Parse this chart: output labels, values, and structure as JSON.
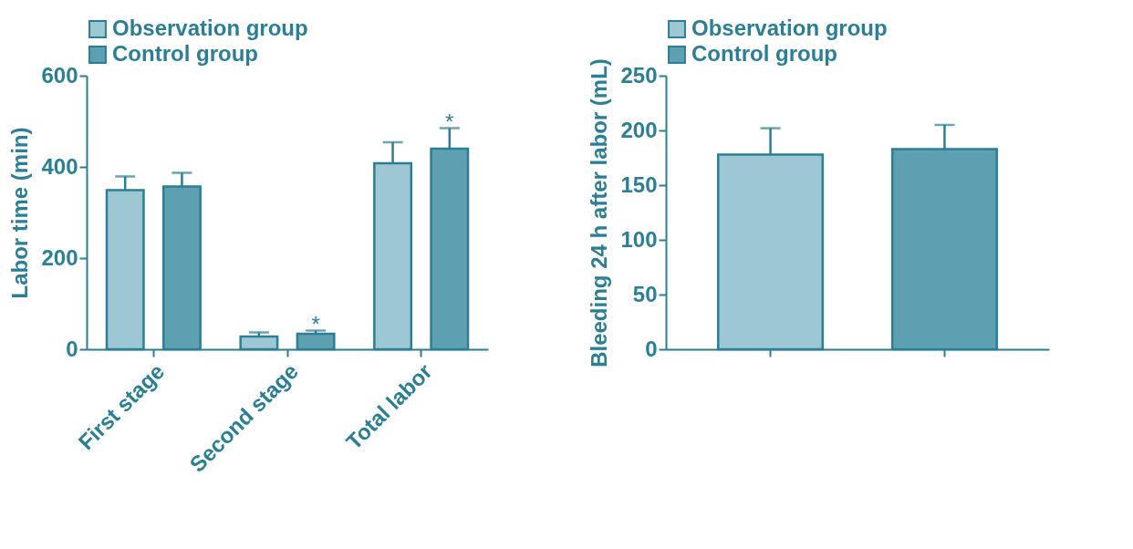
{
  "chart_data": [
    {
      "type": "bar",
      "ylabel": "Labor time (min)",
      "categories": [
        "First stage",
        "Second stage",
        "Total labor"
      ],
      "ylim": [
        0,
        600
      ],
      "yticks": [
        0,
        200,
        400,
        600
      ],
      "legend": "top left",
      "grid": false,
      "series": [
        {
          "name": "Observation group",
          "color": "#9cc7d3",
          "values": [
            349,
            28,
            408
          ],
          "errors": [
            30,
            9,
            46
          ]
        },
        {
          "name": "Control group",
          "color": "#5e9fb2",
          "values": [
            357,
            34,
            440
          ],
          "errors": [
            30,
            7,
            45
          ],
          "value_labels": [
            null,
            "*",
            "*"
          ]
        }
      ]
    },
    {
      "type": "bar",
      "ylabel": "Bleeding 24 h after labor (mL)",
      "categories": [
        null,
        null
      ],
      "ylim": [
        0,
        250
      ],
      "yticks": [
        0,
        50,
        100,
        150,
        200,
        250
      ],
      "legend": "top left",
      "grid": false,
      "series": [
        {
          "name": "Observation group",
          "color": "#9cc7d3",
          "values": [
            178,
            null
          ],
          "errors": [
            24,
            null
          ]
        },
        {
          "name": "Control group",
          "color": "#5e9fb2",
          "values": [
            null,
            183
          ],
          "errors": [
            null,
            22
          ]
        }
      ]
    }
  ]
}
